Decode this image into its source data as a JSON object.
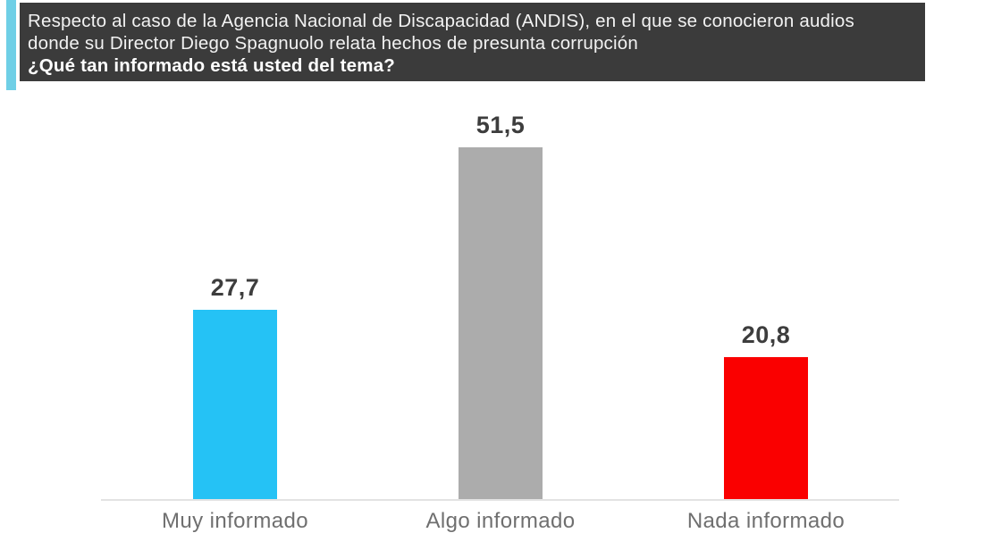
{
  "header": {
    "intro_lines": [
      "Respecto al caso de la Agencia Nacional de Discapacidad (ANDIS), en el que se conocieron audios",
      "donde su Director Diego Spagnuolo relata hechos de presunta corrupción"
    ],
    "question": "¿Qué tan informado está usted del tema?",
    "background_color": "#3b3b3b",
    "accent_color": "#6fcfe6"
  },
  "chart_data": {
    "type": "bar",
    "title": "¿Qué tan informado está usted del tema?",
    "categories": [
      "Muy informado",
      "Algo informado",
      "Nada informado"
    ],
    "values": [
      27.7,
      51.5,
      20.8
    ],
    "value_labels": [
      "27,7",
      "51,5",
      "20,8"
    ],
    "bar_colors": [
      "#25c2f5",
      "#acacac",
      "#fa0000"
    ],
    "xlabel": "",
    "ylabel": "",
    "ylim": [
      0,
      60
    ],
    "grid": false,
    "legend": "none",
    "axis_line_color": "#e3e3e3",
    "value_label_color": "#3d3d3d",
    "category_label_color": "#6f6f6f"
  }
}
